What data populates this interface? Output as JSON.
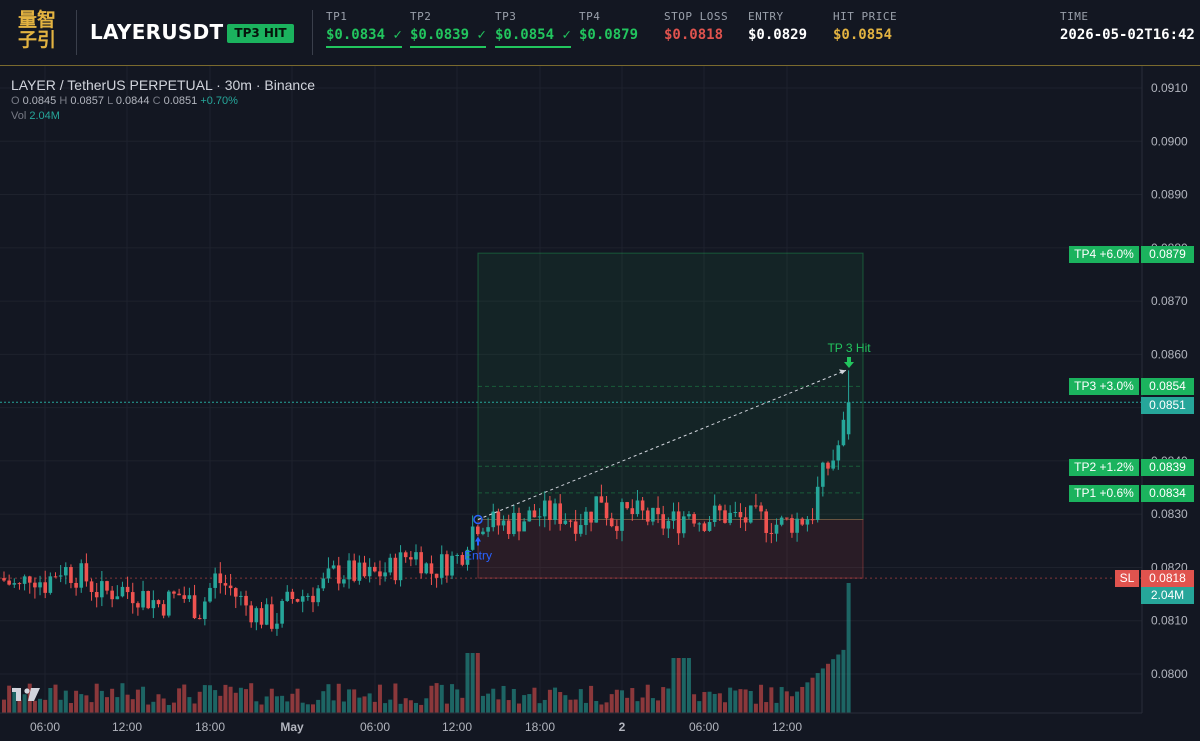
{
  "header": {
    "logo_text": [
      "量智",
      "子引"
    ],
    "symbol": "LAYERUSDT",
    "status_badge": "TP3 HIT",
    "tp1": {
      "label": "TP1",
      "value": "$0.0834 ✓"
    },
    "tp2": {
      "label": "TP2",
      "value": "$0.0839 ✓"
    },
    "tp3": {
      "label": "TP3",
      "value": "$0.0854 ✓"
    },
    "tp4": {
      "label": "TP4",
      "value": "$0.0879"
    },
    "stop_loss": {
      "label": "STOP LOSS",
      "value": "$0.0818"
    },
    "entry": {
      "label": "ENTRY",
      "value": "$0.0829"
    },
    "hit_price": {
      "label": "HIT PRICE",
      "value": "$0.0854"
    },
    "time": {
      "label": "TIME",
      "value": "2026-05-02T16:42"
    }
  },
  "legend": {
    "title": "LAYER / TetherUS PERPETUAL · 30m · Binance",
    "o_label": "O",
    "o_value": "0.0845",
    "h_label": "H",
    "h_value": "0.0857",
    "l_label": "L",
    "l_value": "0.0844",
    "c_label": "C",
    "c_value": "0.0851",
    "change": "+0.70%",
    "vol_label": "Vol",
    "vol_value": "2.04M"
  },
  "tags": {
    "tp4": {
      "label": "TP4 +6.0%",
      "price": "0.0879"
    },
    "tp3": {
      "label": "TP3 +3.0%",
      "price": "0.0854"
    },
    "tp2": {
      "label": "TP2 +1.2%",
      "price": "0.0839"
    },
    "tp1": {
      "label": "TP1 +0.6%",
      "price": "0.0834"
    },
    "sl": {
      "label": "SL",
      "price": "0.0818"
    },
    "last_price": "0.0851",
    "last_volume": "2.04M"
  },
  "annotations": {
    "entry": "Entry",
    "tp_hit": "TP 3 Hit"
  },
  "colors": {
    "background": "#131722",
    "up": "#26a69a",
    "down": "#ef5350",
    "tp_green": "#1bb35e",
    "sl_red": "#e0534e",
    "gold": "#e3b341",
    "entry_blue": "#2962ff"
  },
  "chart_data": {
    "type": "candlestick",
    "y_axis": {
      "ticks": [
        "0.0910",
        "0.0900",
        "0.0890",
        "0.0880",
        "0.0870",
        "0.0860",
        "0.0850",
        "0.0840",
        "0.0830",
        "0.0820",
        "0.0810",
        "0.0800"
      ],
      "range": [
        0.0793,
        0.0916
      ]
    },
    "x_axis": {
      "ticks": [
        "06:00",
        "12:00",
        "18:00",
        "May",
        "06:00",
        "12:00",
        "18:00",
        "2",
        "06:00",
        "12:00"
      ]
    },
    "levels": {
      "tp4": 0.0879,
      "tp3": 0.0854,
      "tp2": 0.0839,
      "tp1": 0.0834,
      "entry": 0.0829,
      "stop_loss": 0.0818
    },
    "last_price": 0.0851,
    "last_volume": "2.04M"
  }
}
